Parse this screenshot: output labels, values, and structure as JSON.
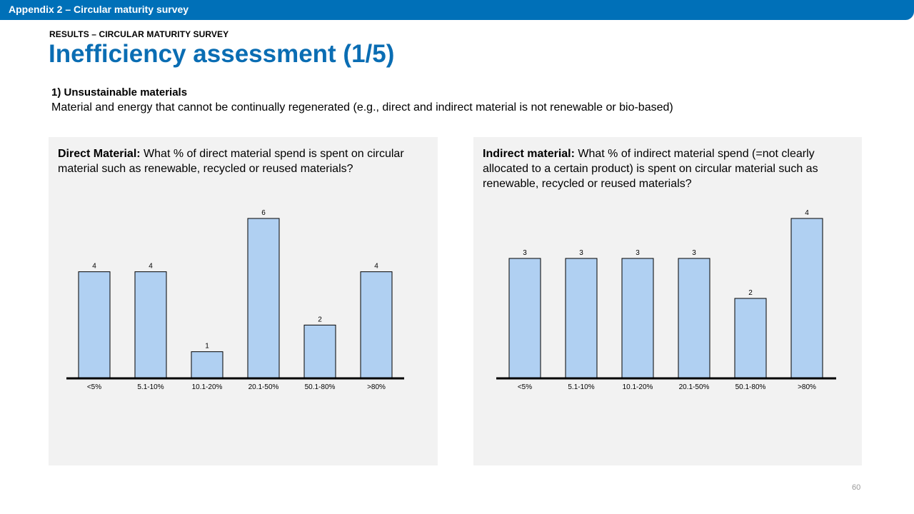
{
  "header": {
    "title": "Appendix 2 – Circular maturity survey"
  },
  "kicker": "RESULTS – CIRCULAR MATURITY SURVEY",
  "page_title": "Inefficiency assessment (1/5)",
  "section": {
    "heading": "1) Unsustainable materials",
    "description": "Material and energy that cannot be continually regenerated (e.g., direct and indirect material is not renewable or bio-based)"
  },
  "panels": [
    {
      "label": "Direct Material:",
      "question": " What % of direct material spend is spent on circular material such as renewable, recycled or reused materials?"
    },
    {
      "label": "Indirect material:",
      "question": " What % of indirect material spend (=not clearly allocated to a certain product) is spent on circular material such as renewable, recycled or reused materials?"
    }
  ],
  "page_number": "60",
  "colors": {
    "bar_fill": "#b0d0f2",
    "bar_stroke": "#000000",
    "accent": "#0a6db3",
    "panel_bg": "#f2f2f2"
  },
  "chart_data": [
    {
      "type": "bar",
      "categories": [
        "<5%",
        "5.1-10%",
        "10.1-20%",
        "20.1-50%",
        "50.1-80%",
        ">80%"
      ],
      "values": [
        4,
        4,
        1,
        6,
        2,
        4
      ],
      "ylim": [
        0,
        6
      ],
      "data_labels": [
        "4",
        "4",
        "1",
        "6",
        "2",
        "4"
      ]
    },
    {
      "type": "bar",
      "categories": [
        "<5%",
        "5.1-10%",
        "10.1-20%",
        "20.1-50%",
        "50.1-80%",
        ">80%"
      ],
      "values": [
        3,
        3,
        3,
        3,
        2,
        4
      ],
      "ylim": [
        0,
        4
      ],
      "data_labels": [
        "3",
        "3",
        "3",
        "3",
        "2",
        "4"
      ]
    }
  ]
}
